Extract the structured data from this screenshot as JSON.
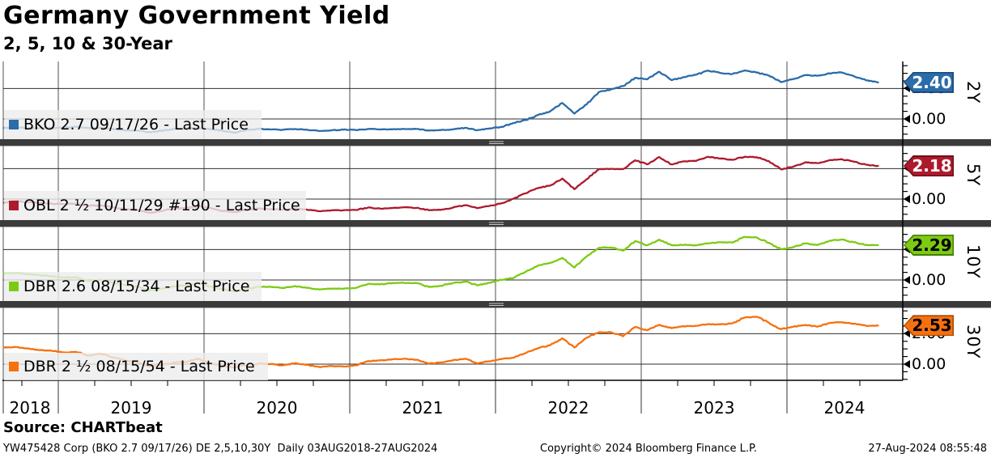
{
  "title": "Germany Government Yield",
  "subtitle": "2, 5, 10 & 30-Year",
  "source_label": "Source: CHARTbeat",
  "footer": {
    "left": "YW475428 Corp (BKO 2.7 09/17/26) DE 2,5,10,30Y  Daily 03AUG2018-27AUG2024",
    "center": "Copyright© 2024 Bloomberg Finance L.P.",
    "right": "27-Aug-2024 08:55:48"
  },
  "chart_data": {
    "type": "line",
    "x_start": 2018.625,
    "x_step": 0.083333,
    "x_range_label": "03AUG2018-27AUG2024",
    "x_axis_years": [
      "2018",
      "2019",
      "2020",
      "2021",
      "2022",
      "2023",
      "2024"
    ],
    "grid": "on",
    "y_tick_labels": {
      "upper": "2.00",
      "lower": "0.00"
    },
    "y_gridlines": [
      0.0,
      2.0
    ],
    "panel_ylim": [
      -1.25,
      3.78
    ],
    "panels": [
      {
        "tenor": "2Y",
        "legend_label": "BKO 2.7 09/17/26 - Last Price",
        "last_price_label": "2.40",
        "last": 2.4,
        "color": "#2b6caa",
        "tag_border": "#1b4676",
        "tag_text": "#ffffff",
        "values": [
          -0.6,
          -0.53,
          -0.62,
          -0.6,
          -0.61,
          -0.57,
          -0.52,
          -0.6,
          -0.58,
          -0.66,
          -0.75,
          -0.76,
          -0.88,
          -0.77,
          -0.66,
          -0.63,
          -0.6,
          -0.67,
          -0.77,
          -0.9,
          -0.72,
          -0.66,
          -0.69,
          -0.71,
          -0.66,
          -0.71,
          -0.79,
          -0.75,
          -0.7,
          -0.73,
          -0.66,
          -0.69,
          -0.68,
          -0.66,
          -0.66,
          -0.76,
          -0.73,
          -0.69,
          -0.58,
          -0.74,
          -0.62,
          -0.52,
          -0.26,
          -0.07,
          0.26,
          0.5,
          1.05,
          0.35,
          0.95,
          1.76,
          1.94,
          2.16,
          2.7,
          2.6,
          3.1,
          2.55,
          2.75,
          2.9,
          3.18,
          3.02,
          2.95,
          3.18,
          3.05,
          2.85,
          2.42,
          2.62,
          2.88,
          2.84,
          3.0,
          3.06,
          2.82,
          2.55,
          2.4
        ]
      },
      {
        "tenor": "5Y",
        "legend_label": "OBL 2 ½ 10/11/29 #190 - Last Price",
        "last_price_label": "2.18",
        "last": 2.18,
        "color": "#ad1a2c",
        "tag_border": "#6e0d1c",
        "tag_text": "#ffffff",
        "values": [
          -0.24,
          -0.12,
          -0.2,
          -0.26,
          -0.31,
          -0.33,
          -0.3,
          -0.45,
          -0.41,
          -0.54,
          -0.66,
          -0.73,
          -0.9,
          -0.77,
          -0.64,
          -0.58,
          -0.47,
          -0.58,
          -0.78,
          -0.85,
          -0.7,
          -0.63,
          -0.66,
          -0.7,
          -0.62,
          -0.7,
          -0.8,
          -0.74,
          -0.73,
          -0.72,
          -0.56,
          -0.63,
          -0.59,
          -0.53,
          -0.58,
          -0.73,
          -0.71,
          -0.56,
          -0.41,
          -0.6,
          -0.45,
          -0.27,
          0.02,
          0.38,
          0.72,
          0.89,
          1.35,
          0.65,
          1.3,
          1.96,
          1.99,
          1.97,
          2.55,
          2.28,
          2.76,
          2.28,
          2.48,
          2.5,
          2.78,
          2.66,
          2.58,
          2.78,
          2.75,
          2.5,
          1.96,
          2.12,
          2.42,
          2.36,
          2.56,
          2.62,
          2.46,
          2.26,
          2.18
        ]
      },
      {
        "tenor": "10Y",
        "legend_label": "DBR 2.6 08/15/34 - Last Price",
        "last_price_label": "2.29",
        "last": 2.29,
        "color": "#7ccb12",
        "tag_border": "#447c00",
        "tag_text": "#000000",
        "values": [
          0.42,
          0.47,
          0.39,
          0.31,
          0.24,
          0.15,
          0.18,
          -0.07,
          0.01,
          -0.2,
          -0.33,
          -0.44,
          -0.7,
          -0.57,
          -0.41,
          -0.36,
          -0.19,
          -0.43,
          -0.61,
          -0.75,
          -0.59,
          -0.45,
          -0.45,
          -0.52,
          -0.4,
          -0.52,
          -0.63,
          -0.57,
          -0.57,
          -0.52,
          -0.26,
          -0.29,
          -0.2,
          -0.19,
          -0.21,
          -0.46,
          -0.38,
          -0.2,
          -0.11,
          -0.35,
          -0.18,
          0.01,
          0.14,
          0.55,
          0.94,
          1.12,
          1.45,
          0.82,
          1.54,
          2.11,
          2.14,
          1.93,
          2.56,
          2.28,
          2.65,
          2.28,
          2.31,
          2.28,
          2.4,
          2.48,
          2.46,
          2.84,
          2.8,
          2.44,
          2.02,
          2.16,
          2.4,
          2.3,
          2.58,
          2.66,
          2.48,
          2.3,
          2.29
        ]
      },
      {
        "tenor": "30Y",
        "legend_label": "DBR 2 ½ 08/15/54 - Last Price",
        "last_price_label": "2.53",
        "last": 2.53,
        "color": "#f7700e",
        "tag_border": "#a34806",
        "tag_text": "#000000",
        "values": [
          1.09,
          1.12,
          1.02,
          0.93,
          0.87,
          0.77,
          0.8,
          0.57,
          0.69,
          0.44,
          0.26,
          0.12,
          -0.16,
          -0.07,
          0.12,
          0.15,
          0.35,
          0.05,
          -0.13,
          -0.2,
          -0.06,
          0.03,
          0.01,
          -0.08,
          0.07,
          -0.05,
          -0.19,
          -0.12,
          -0.16,
          -0.08,
          0.2,
          0.25,
          0.32,
          0.35,
          0.29,
          0.03,
          0.11,
          0.26,
          0.35,
          0.05,
          0.19,
          0.33,
          0.42,
          0.73,
          1.05,
          1.24,
          1.7,
          1.09,
          1.74,
          2.09,
          2.1,
          1.83,
          2.44,
          2.23,
          2.59,
          2.36,
          2.49,
          2.52,
          2.62,
          2.61,
          2.68,
          3.06,
          3.12,
          2.73,
          2.3,
          2.45,
          2.58,
          2.46,
          2.7,
          2.76,
          2.66,
          2.52,
          2.53
        ]
      }
    ]
  }
}
